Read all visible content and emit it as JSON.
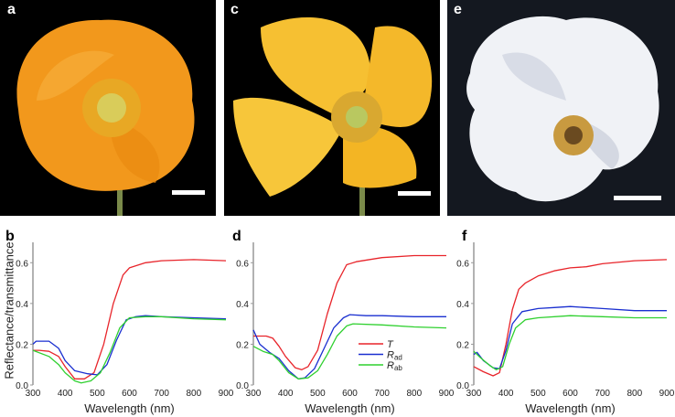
{
  "panels": {
    "a": "a",
    "b": "b",
    "c": "c",
    "d": "d",
    "e": "e",
    "f": "f"
  },
  "ylabel": "Reflectance/transmittance",
  "colors": {
    "T": "#e8242a",
    "Rad": "#1a2fd0",
    "Rab": "#2fd02f"
  },
  "legend": [
    {
      "main": "T",
      "sub": ""
    },
    {
      "main": "R",
      "sub": "ad"
    },
    {
      "main": "R",
      "sub": "ab"
    }
  ],
  "chart_data": [
    {
      "panel": "b",
      "type": "line",
      "xlabel": "Wavelength (nm)",
      "ylabel": "Reflectance/transmittance",
      "xlim": [
        300,
        900
      ],
      "ylim": [
        0,
        0.7
      ],
      "xticks": [
        300,
        400,
        500,
        600,
        700,
        800,
        900
      ],
      "yticks": [
        "0.0",
        "0.2",
        "0.4",
        "0.6"
      ],
      "series": [
        {
          "name": "T",
          "x": [
            300,
            320,
            350,
            380,
            400,
            430,
            460,
            490,
            520,
            550,
            580,
            600,
            650,
            700,
            800,
            900
          ],
          "y": [
            0.17,
            0.17,
            0.165,
            0.14,
            0.09,
            0.03,
            0.03,
            0.06,
            0.2,
            0.4,
            0.54,
            0.575,
            0.6,
            0.61,
            0.615,
            0.61
          ]
        },
        {
          "name": "Rad",
          "x": [
            300,
            310,
            350,
            380,
            400,
            430,
            470,
            500,
            530,
            560,
            590,
            620,
            650,
            700,
            800,
            900
          ],
          "y": [
            0.2,
            0.215,
            0.215,
            0.18,
            0.12,
            0.07,
            0.055,
            0.05,
            0.1,
            0.22,
            0.32,
            0.335,
            0.34,
            0.335,
            0.33,
            0.325
          ]
        },
        {
          "name": "Rab",
          "x": [
            300,
            350,
            380,
            400,
            430,
            450,
            480,
            510,
            540,
            570,
            600,
            650,
            700,
            800,
            900
          ],
          "y": [
            0.17,
            0.14,
            0.1,
            0.06,
            0.02,
            0.01,
            0.02,
            0.06,
            0.16,
            0.28,
            0.33,
            0.335,
            0.335,
            0.325,
            0.32
          ]
        }
      ]
    },
    {
      "panel": "d",
      "type": "line",
      "xlabel": "Wavelength (nm)",
      "xlim": [
        300,
        900
      ],
      "ylim": [
        0,
        0.7
      ],
      "xticks": [
        300,
        400,
        500,
        600,
        700,
        800,
        900
      ],
      "yticks": [
        "0.0",
        "0.2",
        "0.4",
        "0.6"
      ],
      "series": [
        {
          "name": "T",
          "x": [
            300,
            340,
            360,
            380,
            400,
            430,
            450,
            470,
            500,
            530,
            560,
            590,
            620,
            700,
            800,
            900
          ],
          "y": [
            0.24,
            0.24,
            0.23,
            0.19,
            0.14,
            0.085,
            0.075,
            0.09,
            0.17,
            0.35,
            0.5,
            0.59,
            0.605,
            0.625,
            0.635,
            0.635
          ]
        },
        {
          "name": "Rad",
          "x": [
            300,
            320,
            350,
            380,
            410,
            440,
            460,
            490,
            520,
            550,
            580,
            600,
            650,
            700,
            800,
            900
          ],
          "y": [
            0.27,
            0.2,
            0.16,
            0.13,
            0.07,
            0.03,
            0.035,
            0.08,
            0.18,
            0.28,
            0.33,
            0.345,
            0.34,
            0.34,
            0.335,
            0.335
          ]
        },
        {
          "name": "Rab",
          "x": [
            300,
            330,
            360,
            380,
            410,
            440,
            470,
            500,
            530,
            560,
            590,
            610,
            700,
            800,
            900
          ],
          "y": [
            0.19,
            0.165,
            0.15,
            0.12,
            0.06,
            0.03,
            0.035,
            0.07,
            0.15,
            0.24,
            0.29,
            0.3,
            0.295,
            0.285,
            0.28
          ]
        }
      ]
    },
    {
      "panel": "f",
      "type": "line",
      "xlabel": "Wavelength (nm)",
      "xlim": [
        300,
        900
      ],
      "ylim": [
        0,
        0.7
      ],
      "xticks": [
        300,
        400,
        500,
        600,
        700,
        800,
        900
      ],
      "yticks": [
        "0.0",
        "0.2",
        "0.4",
        "0.6"
      ],
      "series": [
        {
          "name": "T",
          "x": [
            300,
            330,
            360,
            380,
            400,
            420,
            440,
            460,
            500,
            550,
            600,
            650,
            700,
            800,
            900
          ],
          "y": [
            0.09,
            0.065,
            0.045,
            0.06,
            0.2,
            0.37,
            0.47,
            0.5,
            0.535,
            0.56,
            0.575,
            0.58,
            0.595,
            0.61,
            0.615
          ]
        },
        {
          "name": "Rad",
          "x": [
            300,
            310,
            330,
            360,
            380,
            400,
            420,
            450,
            500,
            550,
            600,
            700,
            800,
            900
          ],
          "y": [
            0.15,
            0.16,
            0.12,
            0.085,
            0.08,
            0.17,
            0.3,
            0.36,
            0.375,
            0.38,
            0.385,
            0.375,
            0.365,
            0.365
          ]
        },
        {
          "name": "Rab",
          "x": [
            300,
            320,
            350,
            370,
            390,
            410,
            430,
            460,
            500,
            600,
            700,
            800,
            900
          ],
          "y": [
            0.165,
            0.135,
            0.095,
            0.075,
            0.09,
            0.2,
            0.28,
            0.32,
            0.33,
            0.34,
            0.335,
            0.33,
            0.33
          ]
        }
      ]
    }
  ]
}
